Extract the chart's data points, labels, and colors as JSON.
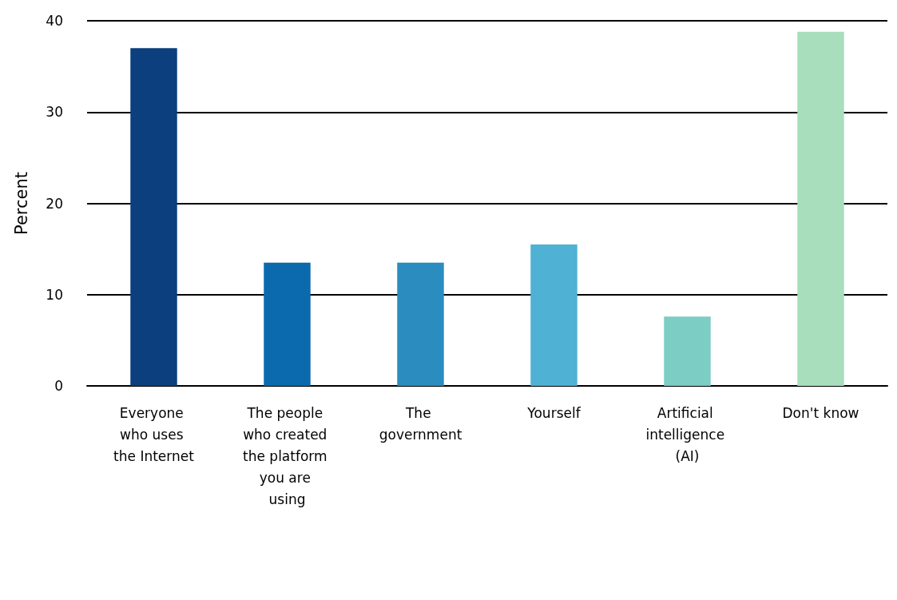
{
  "chart_data": {
    "type": "bar",
    "ylabel": "Percent",
    "categories": [
      "Everyone who uses the Internet",
      "The people who created the platform you are using",
      "The government",
      "Yourself",
      "Artificial intelligence (AI)",
      "Don't know"
    ],
    "values": [
      37.0,
      13.5,
      13.5,
      15.5,
      7.6,
      38.8
    ],
    "colors": [
      "#0b3f7d",
      "#0a6aad",
      "#2b8cc0",
      "#4fb1d3",
      "#7ccdc3",
      "#a8debb"
    ],
    "ylim": [
      0,
      40
    ],
    "yticks": [
      0,
      10,
      20,
      30,
      40
    ],
    "grid": "y"
  }
}
